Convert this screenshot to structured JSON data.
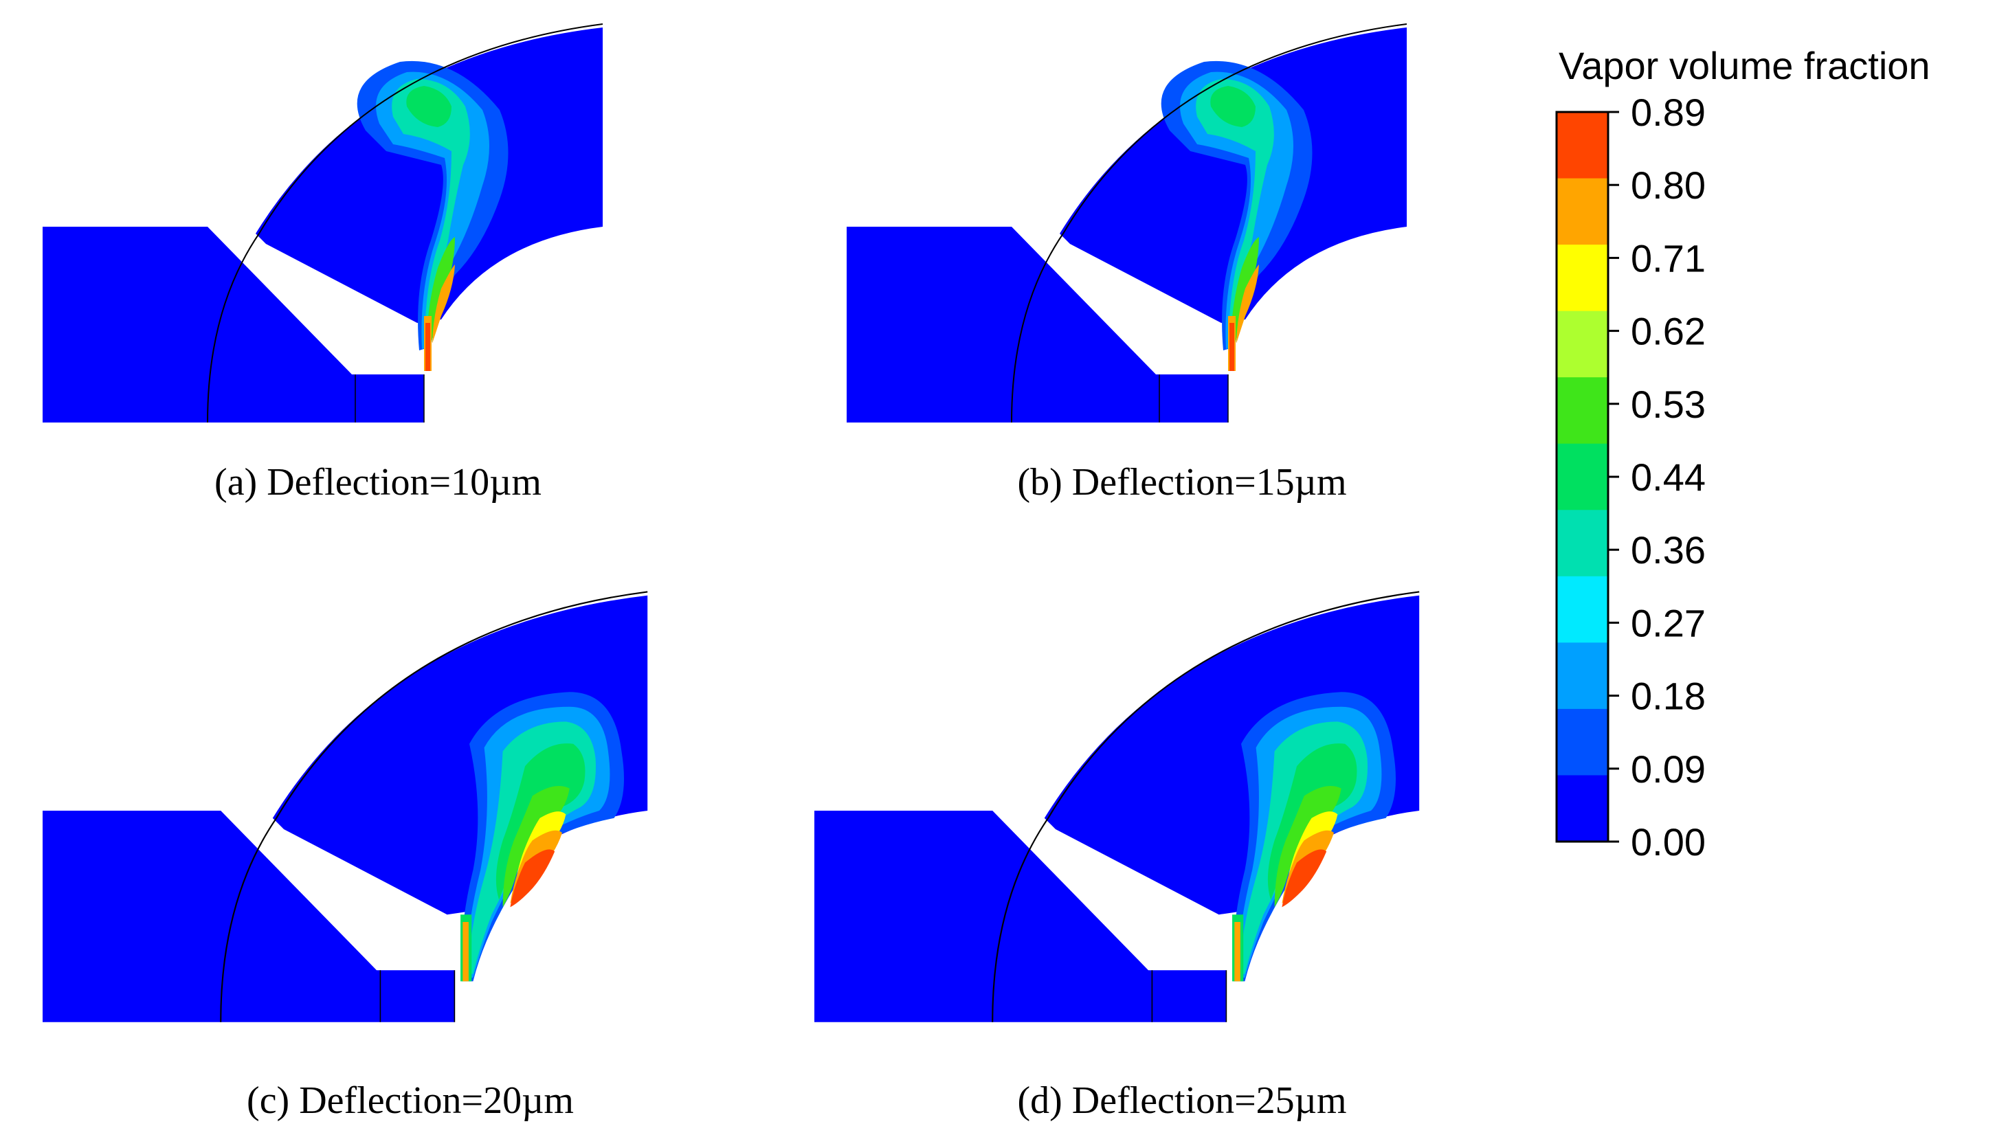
{
  "colorbar": {
    "title": "Vapor volume fraction",
    "ticks": [
      "0.89",
      "0.80",
      "0.71",
      "0.62",
      "0.53",
      "0.44",
      "0.36",
      "0.27",
      "0.18",
      "0.09",
      "0.00"
    ],
    "colors": [
      "#ff4500",
      "#ffa500",
      "#ffff00",
      "#adff2f",
      "#3fe51a",
      "#00e060",
      "#00e0b0",
      "#00eaff",
      "#00a0ff",
      "#0052ff",
      "#0000ff"
    ]
  },
  "panels": [
    {
      "caption": "(a) Deflection=10µm"
    },
    {
      "caption": "(b) Deflection=15µm"
    },
    {
      "caption": "(c) Deflection=20µm"
    },
    {
      "caption": "(d) Deflection=25µm"
    }
  ]
}
